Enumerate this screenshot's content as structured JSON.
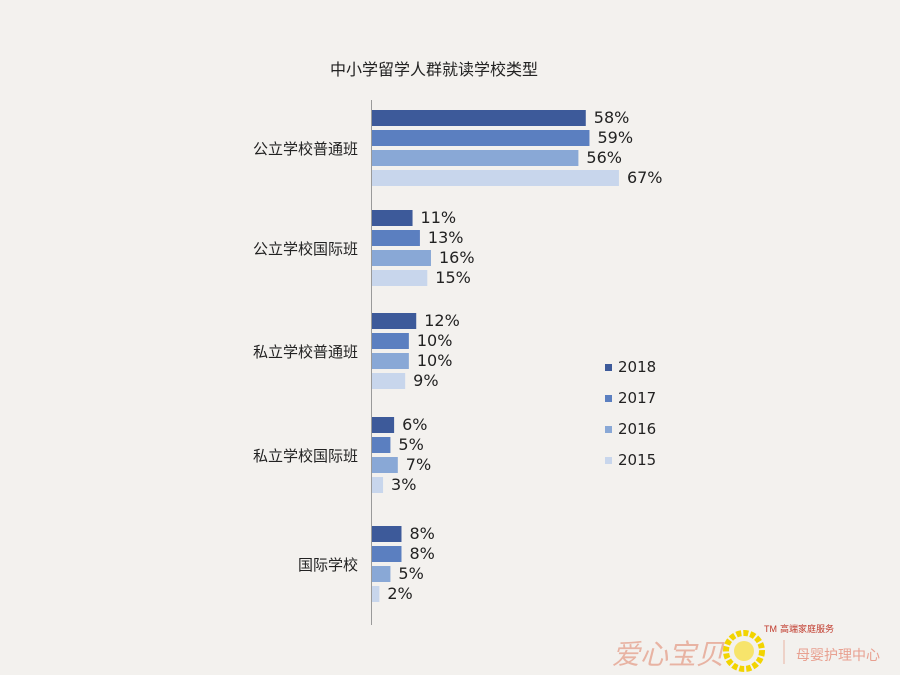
{
  "chart_data": {
    "type": "bar",
    "orientation": "horizontal",
    "title": "中小学留学人群就读学校类型",
    "categories": [
      "公立学校普通班",
      "公立学校国际班",
      "私立学校普通班",
      "私立学校国际班",
      "国际学校"
    ],
    "series": [
      {
        "name": "2018",
        "color": "#3d5a9a",
        "values": [
          58,
          11,
          12,
          6,
          8
        ]
      },
      {
        "name": "2017",
        "color": "#5b7fc0",
        "values": [
          59,
          13,
          10,
          5,
          8
        ]
      },
      {
        "name": "2016",
        "color": "#89a8d6",
        "values": [
          56,
          16,
          10,
          7,
          5
        ]
      },
      {
        "name": "2015",
        "color": "#c8d6ec",
        "values": [
          67,
          15,
          9,
          3,
          2
        ]
      }
    ],
    "value_suffix": "%",
    "xlim": [
      0,
      70
    ],
    "grid": false,
    "legend_position": "right"
  },
  "watermark": {
    "brand_text": "爱心宝贝",
    "tm": "TM",
    "tagline": "高端家庭服务",
    "service_text": "母婴护理中心",
    "brand_color": "#e8b3a3",
    "logo_color": "#f2d400"
  }
}
